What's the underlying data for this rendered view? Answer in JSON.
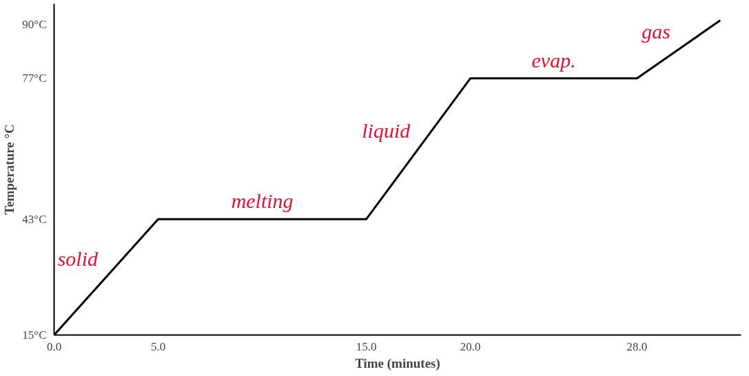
{
  "chart_data": {
    "type": "line",
    "xlabel": "Time (minutes)",
    "ylabel": "Temperature °C",
    "x": [
      0,
      5,
      15,
      20,
      28,
      32
    ],
    "series": [
      {
        "color": "#000000",
        "values": [
          15,
          43,
          43,
          77,
          77,
          91
        ]
      }
    ],
    "xlim": [
      0,
      33
    ],
    "ylim": [
      15,
      95
    ],
    "xticks": [
      {
        "value": 0,
        "label": "0.0"
      },
      {
        "value": 5,
        "label": "5.0"
      },
      {
        "value": 15,
        "label": "15.0"
      },
      {
        "value": 20,
        "label": "20.0"
      },
      {
        "value": 28,
        "label": "28.0"
      }
    ],
    "yticks": [
      {
        "value": 15,
        "label": "15°C"
      },
      {
        "value": 43,
        "label": "43°C"
      },
      {
        "value": 77,
        "label": "77°C"
      },
      {
        "value": 90,
        "label": "90°C"
      }
    ],
    "grid": false,
    "marker": "none",
    "line_style": "solid",
    "annotations": [
      "solid",
      "melting",
      "liquid",
      "evap.",
      "gas"
    ]
  }
}
